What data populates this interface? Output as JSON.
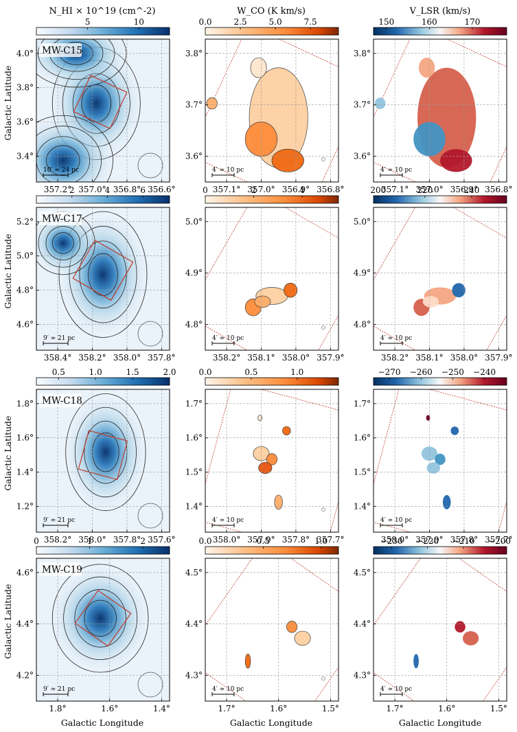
{
  "axis_labels": {
    "ylabel": "Galactic Latitude",
    "xlabel": "Galactic Longitude"
  },
  "colors": {
    "hi_cmap": [
      "#f7fbff",
      "#c6dbef",
      "#6baed6",
      "#2171b5",
      "#08306b"
    ],
    "co_cmap": [
      "#fff5eb",
      "#fdbe85",
      "#fd8d3c",
      "#d94801",
      "#7f2704"
    ],
    "vel_cmap": [
      "#053061",
      "#2166ac",
      "#92c5de",
      "#f7f7f7",
      "#f4a582",
      "#b2182b",
      "#67001f"
    ],
    "box_color": "#c0392b",
    "grid_color": "#9a9a9a"
  },
  "columns": {
    "hi_title": "N_HI × 10^19 (cm^-2)",
    "co_title": "W_CO (K km/s)",
    "vel_title": "V_LSR (km/s)"
  },
  "rows": [
    {
      "name": "MW-C15",
      "hi": {
        "cbar_ticks": [
          5,
          10
        ],
        "cbar_range": [
          0,
          13
        ],
        "xticks": [
          "357.2°",
          "357.0°",
          "356.8°",
          "356.6°"
        ],
        "yticks": [
          "3.4°",
          "3.6°",
          "3.8°",
          "4.0°"
        ],
        "scalebar": "10′ ≃ 24 pc"
      },
      "co": {
        "cbar_ticks": [
          "0.0",
          "2.5",
          "5.0",
          "7.5"
        ],
        "cbar_range": [
          0,
          9.5
        ],
        "xticks": [
          "357.1°",
          "357.0°",
          "356.9°",
          "356.8°"
        ],
        "yticks": [
          "3.6°",
          "3.7°",
          "3.8°"
        ],
        "scalebar": "4′ ≃ 10 pc"
      },
      "vel": {
        "cbar_ticks": [
          "150",
          "160",
          "170"
        ],
        "cbar_range": [
          147,
          178
        ],
        "xticks": [
          "357.1°",
          "357.0°",
          "356.9°",
          "356.8°"
        ],
        "yticks": [
          "3.6°",
          "3.7°",
          "3.8°"
        ],
        "scalebar": "4′ ≃ 10 pc"
      }
    },
    {
      "name": "MW-C17",
      "hi": {
        "cbar_ticks": [
          2,
          4,
          6
        ],
        "cbar_range": [
          0,
          7.5
        ],
        "xticks": [
          "358.4°",
          "358.2°",
          "358.0°",
          "357.8°"
        ],
        "yticks": [
          "4.6°",
          "4.8°",
          "5.0°",
          "5.2°"
        ],
        "scalebar": "9′ ≃ 21 pc"
      },
      "co": {
        "cbar_ticks": [
          "0",
          "2",
          "4"
        ],
        "cbar_range": [
          0,
          5.5
        ],
        "xticks": [
          "358.2°",
          "358.1°",
          "358.0°",
          "357.9°"
        ],
        "yticks": [
          "4.8°",
          "4.9°",
          "5.0°"
        ],
        "scalebar": "4′ ≃ 10 pc"
      },
      "vel": {
        "cbar_ticks": [
          "200",
          "220",
          "240"
        ],
        "cbar_range": [
          198,
          255
        ],
        "xticks": [
          "358.2°",
          "358.1°",
          "358.0°",
          "357.9°"
        ],
        "yticks": [
          "4.8°",
          "4.9°",
          "5.0°"
        ],
        "scalebar": "4′ ≃ 10 pc"
      }
    },
    {
      "name": "MW-C18",
      "hi": {
        "cbar_ticks": [
          "0.5",
          "1.0",
          "1.5",
          "2.0"
        ],
        "cbar_range": [
          0.2,
          2.0
        ],
        "xticks": [
          "358.2°",
          "358.0°",
          "357.8°",
          "357.6°"
        ],
        "yticks": [
          "1.2°",
          "1.4°",
          "1.6°",
          "1.8°"
        ],
        "scalebar": "9′ ≃ 21 pc"
      },
      "co": {
        "cbar_ticks": [
          "0.0",
          "0.5",
          "1.0"
        ],
        "cbar_range": [
          0,
          1.45
        ],
        "xticks": [
          "358.0°",
          "357.9°",
          "357.8°",
          "357.7°"
        ],
        "yticks": [
          "1.4°",
          "1.5°",
          "1.6°",
          "1.7°"
        ],
        "scalebar": "4′ ≃ 10 pc"
      },
      "vel": {
        "cbar_ticks": [
          "−270",
          "−260",
          "−250",
          "−240"
        ],
        "cbar_range": [
          -275,
          -233
        ],
        "xticks": [
          "358.0°",
          "357.9°",
          "357.8°",
          "357.7°"
        ],
        "yticks": [
          "1.4°",
          "1.5°",
          "1.6°",
          "1.7°"
        ],
        "scalebar": "4′ ≃ 10 pc"
      }
    },
    {
      "name": "MW-C19",
      "hi": {
        "cbar_ticks": [
          "0",
          "1",
          "2"
        ],
        "cbar_range": [
          0,
          2.5
        ],
        "xticks": [
          "1.8°",
          "1.6°",
          "1.4°"
        ],
        "yticks": [
          "4.2°",
          "4.4°",
          "4.6°"
        ],
        "scalebar": "9′ ≃ 21 pc"
      },
      "co": {
        "cbar_ticks": [
          "0.0",
          "0.5",
          "1.0"
        ],
        "cbar_range": [
          0,
          1.15
        ],
        "xticks": [
          "1.7°",
          "1.6°",
          "1.5°"
        ],
        "yticks": [
          "4.3°",
          "4.4°",
          "4.5°"
        ],
        "scalebar": "4′ ≃ 10 pc"
      },
      "vel": {
        "cbar_ticks": [
          "−230",
          "−220",
          "−210",
          "−200"
        ],
        "cbar_range": [
          -235,
          -198
        ],
        "xticks": [
          "1.7°",
          "1.6°",
          "1.5°"
        ],
        "yticks": [
          "4.3°",
          "4.4°",
          "4.5°"
        ],
        "scalebar": "4′ ≃ 10 pc"
      }
    }
  ]
}
